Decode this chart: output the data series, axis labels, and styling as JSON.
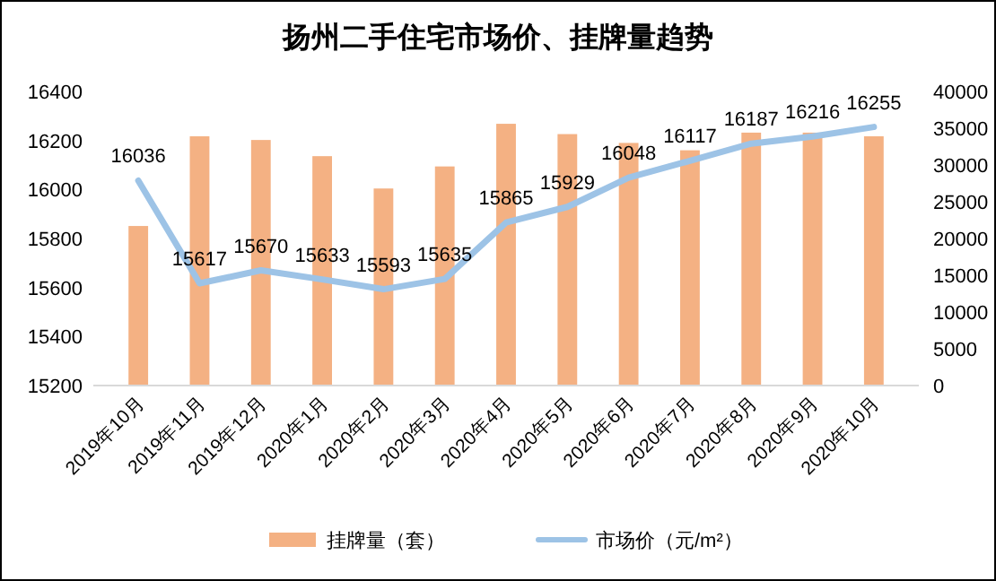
{
  "chart_data": {
    "type": "bar",
    "title": "扬州二手住宅市场价、挂牌量趋势",
    "categories": [
      "2019年10月",
      "2019年11月",
      "2019年12月",
      "2020年1月",
      "2020年2月",
      "2020年3月",
      "2020年4月",
      "2020年5月",
      "2020年6月",
      "2020年7月",
      "2020年8月",
      "2020年9月",
      "2020年10月"
    ],
    "series": [
      {
        "name": "挂牌量（套）",
        "axis": "y2",
        "color": "#f4b183",
        "values": [
          21700,
          33900,
          33400,
          31200,
          26800,
          29800,
          35600,
          34200,
          33000,
          32000,
          34400,
          34400,
          33900
        ]
      },
      {
        "name": "市场价（元/m²）",
        "type": "line",
        "color": "#9dc3e6",
        "values": [
          16036,
          15617,
          15670,
          15633,
          15593,
          15635,
          15865,
          15929,
          16048,
          16117,
          16187,
          16216,
          16255
        ],
        "value_labels": [
          "16036",
          "15617",
          "15670",
          "15633",
          "15593",
          "15635",
          "15865",
          "15929",
          "16048",
          "16117",
          "16187",
          "16216",
          "16255"
        ]
      }
    ],
    "ylim": [
      15200,
      16400
    ],
    "yticks": [
      15200,
      15400,
      15600,
      15800,
      16000,
      16200,
      16400
    ],
    "y2lim": [
      0,
      40000
    ],
    "y2ticks": [
      0,
      5000,
      10000,
      15000,
      20000,
      25000,
      30000,
      35000,
      40000
    ],
    "legend": "bottom",
    "grid": false,
    "marker": "none"
  }
}
